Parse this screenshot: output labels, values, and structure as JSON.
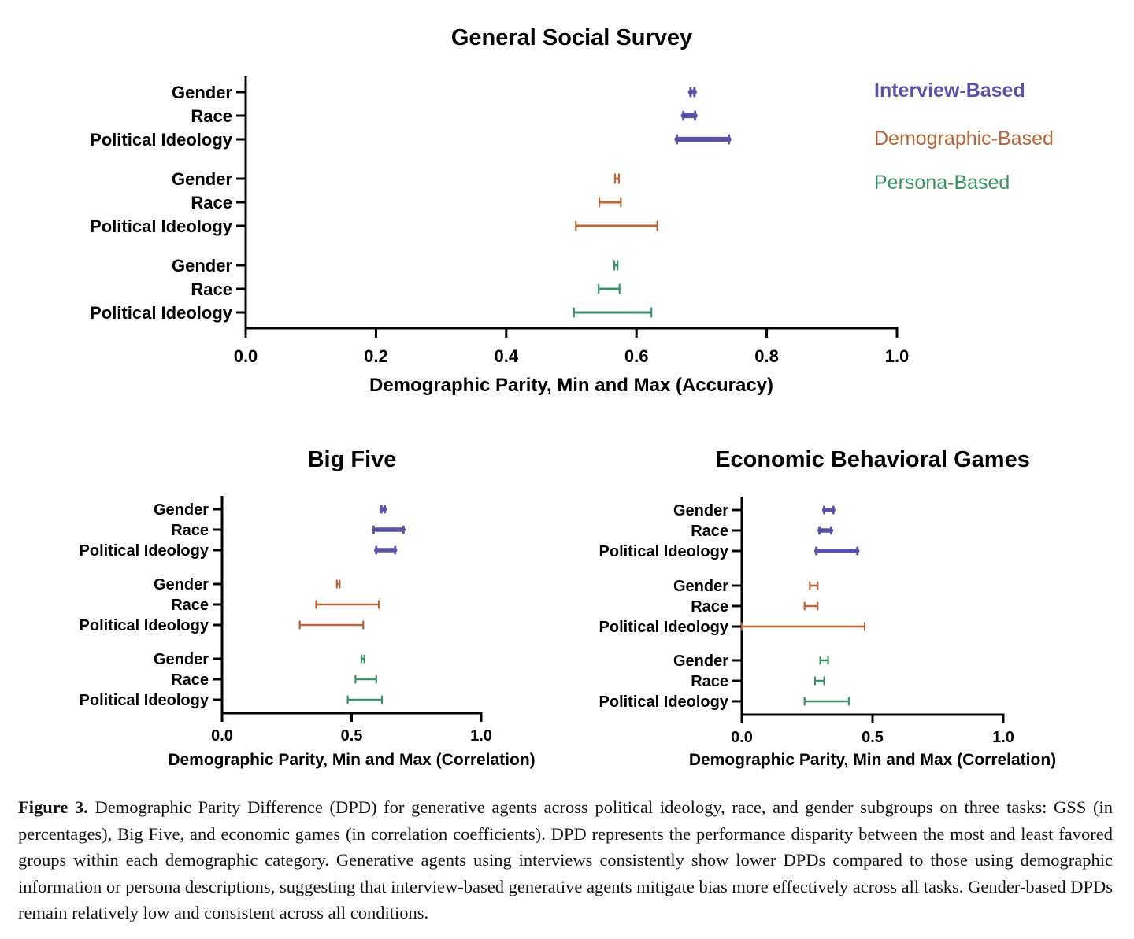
{
  "colors": {
    "interview": "#5a52a6",
    "demographic": "#b9633a",
    "persona": "#3d9168"
  },
  "chart_data": [
    {
      "type": "errorbar-range",
      "title": "General Social Survey",
      "xlabel": "Demographic Parity, Min and Max (Accuracy)",
      "xlim": [
        0.0,
        1.0
      ],
      "xticks": [
        "0.0",
        "0.2",
        "0.4",
        "0.6",
        "0.8",
        "1.0"
      ],
      "legend": {
        "placement": "top-right",
        "entries": [
          "Interview-Based",
          "Demographic-Based",
          "Persona-Based"
        ]
      },
      "groups": [
        {
          "method": "Interview-Based",
          "color_key": "interview",
          "rows": [
            {
              "label": "Gender",
              "min": 0.683,
              "max": 0.689
            },
            {
              "label": "Race",
              "min": 0.672,
              "max": 0.69
            },
            {
              "label": "Political Ideology",
              "min": 0.662,
              "max": 0.742
            }
          ]
        },
        {
          "method": "Demographic-Based",
          "color_key": "demographic",
          "rows": [
            {
              "label": "Gender",
              "min": 0.567,
              "max": 0.573
            },
            {
              "label": "Race",
              "min": 0.543,
              "max": 0.576
            },
            {
              "label": "Political Ideology",
              "min": 0.507,
              "max": 0.632
            }
          ]
        },
        {
          "method": "Persona-Based",
          "color_key": "persona",
          "rows": [
            {
              "label": "Gender",
              "min": 0.566,
              "max": 0.571
            },
            {
              "label": "Race",
              "min": 0.542,
              "max": 0.574
            },
            {
              "label": "Political Ideology",
              "min": 0.504,
              "max": 0.623
            }
          ]
        }
      ]
    },
    {
      "type": "errorbar-range",
      "title": "Big Five",
      "xlabel": "Demographic Parity, Min and Max (Correlation)",
      "xlim": [
        0.0,
        1.0
      ],
      "xticks": [
        "0.0",
        "0.5",
        "1.0"
      ],
      "groups": [
        {
          "method": "Interview-Based",
          "color_key": "interview",
          "rows": [
            {
              "label": "Gender",
              "min": 0.615,
              "max": 0.628
            },
            {
              "label": "Race",
              "min": 0.585,
              "max": 0.7
            },
            {
              "label": "Political Ideology",
              "min": 0.595,
              "max": 0.668
            }
          ]
        },
        {
          "method": "Demographic-Based",
          "color_key": "demographic",
          "rows": [
            {
              "label": "Gender",
              "min": 0.443,
              "max": 0.454
            },
            {
              "label": "Race",
              "min": 0.363,
              "max": 0.605
            },
            {
              "label": "Political Ideology",
              "min": 0.3,
              "max": 0.545
            }
          ]
        },
        {
          "method": "Persona-Based",
          "color_key": "persona",
          "rows": [
            {
              "label": "Gender",
              "min": 0.538,
              "max": 0.549
            },
            {
              "label": "Race",
              "min": 0.515,
              "max": 0.595
            },
            {
              "label": "Political Ideology",
              "min": 0.485,
              "max": 0.617
            }
          ]
        }
      ]
    },
    {
      "type": "errorbar-range",
      "title": "Economic Behavioral Games",
      "xlabel": "Demographic Parity, Min and Max (Correlation)",
      "xlim": [
        0.0,
        1.0
      ],
      "xticks": [
        "0.0",
        "0.5",
        "1.0"
      ],
      "groups": [
        {
          "method": "Interview-Based",
          "color_key": "interview",
          "rows": [
            {
              "label": "Gender",
              "min": 0.315,
              "max": 0.35
            },
            {
              "label": "Race",
              "min": 0.297,
              "max": 0.342
            },
            {
              "label": "Political Ideology",
              "min": 0.285,
              "max": 0.442
            }
          ]
        },
        {
          "method": "Demographic-Based",
          "color_key": "demographic",
          "rows": [
            {
              "label": "Gender",
              "min": 0.26,
              "max": 0.29
            },
            {
              "label": "Race",
              "min": 0.24,
              "max": 0.29
            },
            {
              "label": "Political Ideology",
              "min": 0.0,
              "max": 0.47
            }
          ]
        },
        {
          "method": "Persona-Based",
          "color_key": "persona",
          "rows": [
            {
              "label": "Gender",
              "min": 0.3,
              "max": 0.33
            },
            {
              "label": "Race",
              "min": 0.28,
              "max": 0.315
            },
            {
              "label": "Political Ideology",
              "min": 0.24,
              "max": 0.41
            }
          ]
        }
      ]
    }
  ],
  "caption": {
    "label": "Figure 3.",
    "text": " Demographic Parity Difference (DPD) for generative agents across political ideology, race, and gender subgroups on three tasks: GSS (in percentages), Big Five, and economic games (in correlation coefficients). DPD represents the performance disparity between the most and least favored groups within each demographic category. Generative agents using interviews consistently show lower DPDs compared to those using demographic information or persona descriptions, suggesting that interview-based generative agents mitigate bias more effectively across all tasks. Gender-based DPDs remain relatively low and consistent across all conditions."
  }
}
